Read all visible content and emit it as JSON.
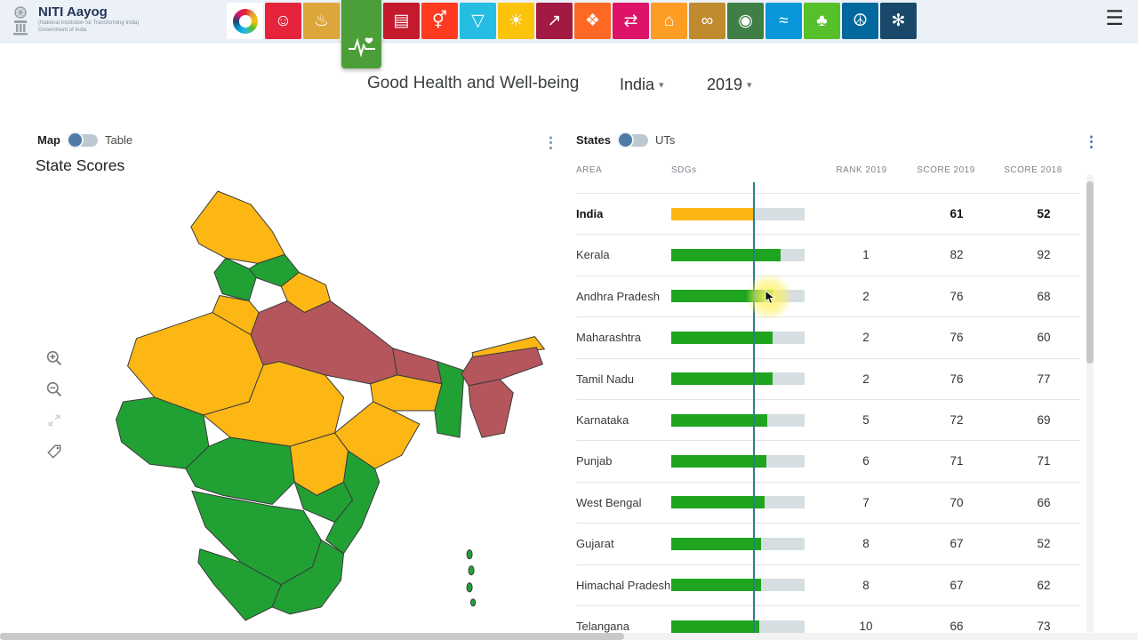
{
  "header": {
    "brand": {
      "title": "NITI Aayog",
      "subtitle_line1": "(National Institution for Transforming India)",
      "subtitle_line2": "Government of India"
    },
    "menu_icon": "☰",
    "sdg_icons": [
      {
        "name": "sdg-wheel-icon",
        "type": "wheel",
        "color": "#ffffff",
        "glyph": ""
      },
      {
        "name": "sdg-1-no-poverty-icon",
        "color": "#e5243b",
        "glyph": "☺"
      },
      {
        "name": "sdg-2-zero-hunger-icon",
        "color": "#dda63a",
        "glyph": "♨"
      },
      {
        "name": "sdg-3-good-health-icon",
        "type": "selected",
        "color": "#4c9f38",
        "glyph": ""
      },
      {
        "name": "sdg-4-quality-education-icon",
        "color": "#c5192d",
        "glyph": "▤"
      },
      {
        "name": "sdg-5-gender-equality-icon",
        "color": "#ff3a21",
        "glyph": "⚥"
      },
      {
        "name": "sdg-6-clean-water-icon",
        "color": "#26bde2",
        "glyph": "▽"
      },
      {
        "name": "sdg-7-affordable-energy-icon",
        "color": "#fcc30b",
        "glyph": "☀"
      },
      {
        "name": "sdg-8-decent-work-icon",
        "color": "#a21942",
        "glyph": "↗"
      },
      {
        "name": "sdg-9-industry-innovation-icon",
        "color": "#fd6925",
        "glyph": "❖"
      },
      {
        "name": "sdg-10-reduced-inequalities-icon",
        "color": "#dd1367",
        "glyph": "⇄"
      },
      {
        "name": "sdg-11-sustainable-cities-icon",
        "color": "#fd9d24",
        "glyph": "⌂"
      },
      {
        "name": "sdg-12-responsible-consumption-icon",
        "color": "#bf8b2e",
        "glyph": "∞"
      },
      {
        "name": "sdg-13-climate-action-icon",
        "color": "#3f7e44",
        "glyph": "◉"
      },
      {
        "name": "sdg-14-life-below-water-icon",
        "color": "#0a97d9",
        "glyph": "≈"
      },
      {
        "name": "sdg-15-life-on-land-icon",
        "color": "#56c02b",
        "glyph": "♣"
      },
      {
        "name": "sdg-16-peace-justice-icon",
        "color": "#00689d",
        "glyph": "☮"
      },
      {
        "name": "sdg-17-partnerships-icon",
        "color": "#19486a",
        "glyph": "✻"
      }
    ]
  },
  "toolbar": {
    "title": "Good Health and Well-being",
    "region_selector": "India",
    "year_selector": "2019",
    "caret": "▾"
  },
  "map_panel": {
    "view_toggle_left": "Map",
    "view_toggle_right": "Table",
    "heading": "State Scores",
    "kebab_icon": "⋮",
    "colors": {
      "front_runner_green": "#21a134",
      "performer_yellow": "#fdb714",
      "aspirant_red": "#b4565c"
    }
  },
  "table_panel": {
    "group_toggle_left": "States",
    "group_toggle_right": "UTs",
    "kebab_icon": "⋮",
    "columns": [
      "AREA",
      "SDGs",
      "RANK 2019",
      "SCORE 2019",
      "SCORE 2018"
    ],
    "bar_max": 100,
    "reference_score": 61,
    "reference_line_color": "#2b7f8e",
    "rows": [
      {
        "area": "India",
        "rank": "",
        "score_2019": 61,
        "score_2018": 52,
        "bar_color": "#fdb714",
        "bold": true
      },
      {
        "area": "Kerala",
        "rank": "1",
        "score_2019": 82,
        "score_2018": 92,
        "bar_color": "#1ea41e"
      },
      {
        "area": "Andhra Pradesh",
        "rank": "2",
        "score_2019": 76,
        "score_2018": 68,
        "bar_color": "#1ea41e",
        "highlighted": true
      },
      {
        "area": "Maharashtra",
        "rank": "2",
        "score_2019": 76,
        "score_2018": 60,
        "bar_color": "#1ea41e"
      },
      {
        "area": "Tamil Nadu",
        "rank": "2",
        "score_2019": 76,
        "score_2018": 77,
        "bar_color": "#1ea41e"
      },
      {
        "area": "Karnataka",
        "rank": "5",
        "score_2019": 72,
        "score_2018": 69,
        "bar_color": "#1ea41e"
      },
      {
        "area": "Punjab",
        "rank": "6",
        "score_2019": 71,
        "score_2018": 71,
        "bar_color": "#1ea41e"
      },
      {
        "area": "West Bengal",
        "rank": "7",
        "score_2019": 70,
        "score_2018": 66,
        "bar_color": "#1ea41e"
      },
      {
        "area": "Gujarat",
        "rank": "8",
        "score_2019": 67,
        "score_2018": 52,
        "bar_color": "#1ea41e"
      },
      {
        "area": "Himachal Pradesh",
        "rank": "8",
        "score_2019": 67,
        "score_2018": 62,
        "bar_color": "#1ea41e"
      },
      {
        "area": "Telangana",
        "rank": "10",
        "score_2019": 66,
        "score_2018": 73,
        "bar_color": "#1ea41e"
      }
    ]
  }
}
